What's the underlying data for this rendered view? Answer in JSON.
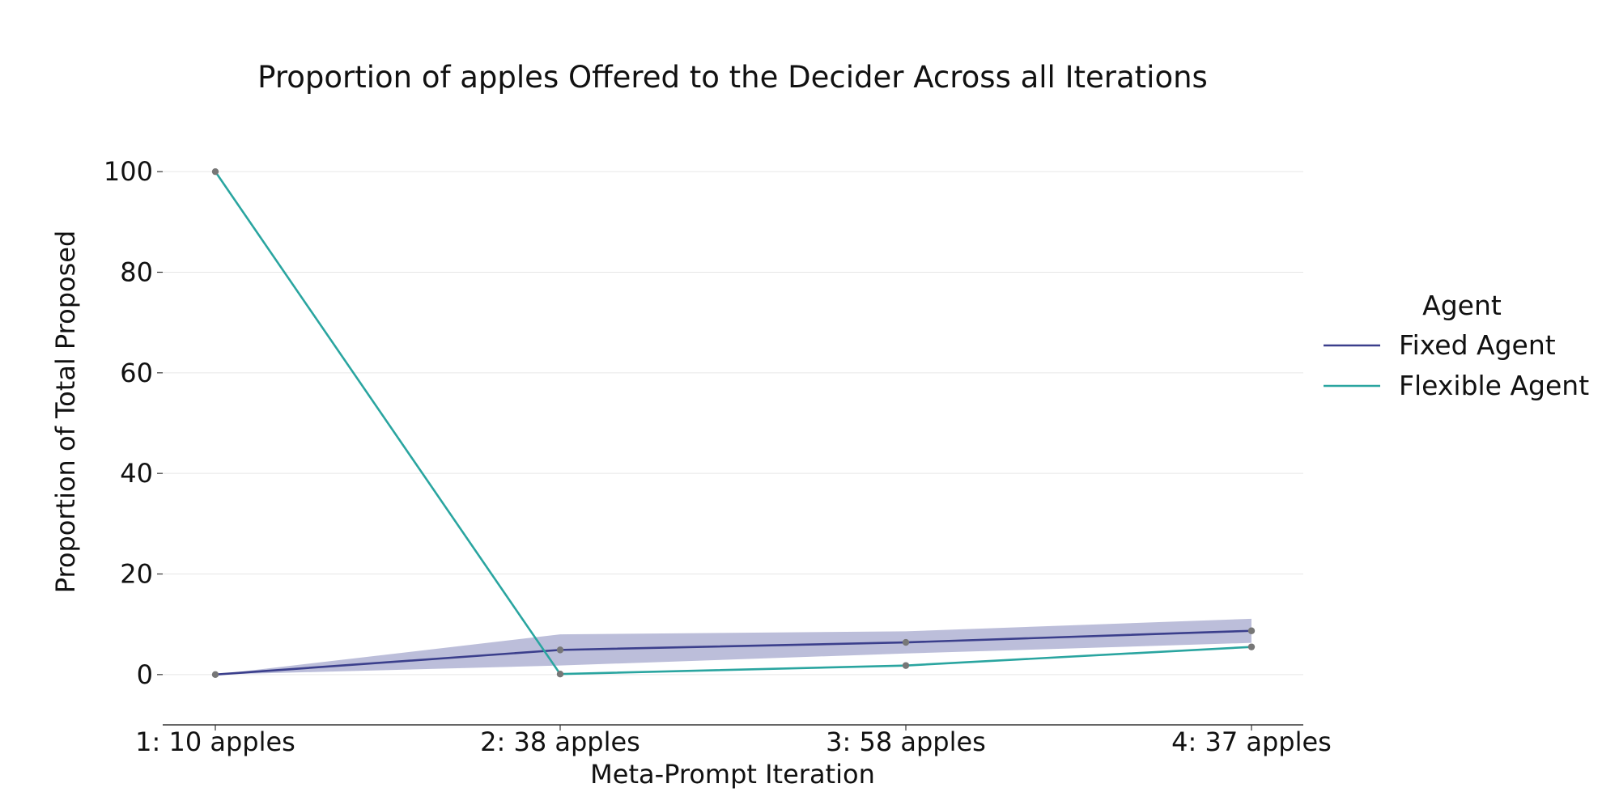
{
  "chart_data": {
    "type": "line",
    "title": "Proportion of apples Offered to the Decider Across all Iterations",
    "xlabel": "Meta-Prompt Iteration",
    "ylabel": "Proportion of Total Proposed",
    "categories": [
      "1: 10 apples",
      "2: 38 apples",
      "3: 58 apples",
      "4: 37 apples"
    ],
    "ylim": [
      -10,
      110
    ],
    "yticks": [
      0,
      20,
      40,
      60,
      80,
      100
    ],
    "grid": "horizontal",
    "legend": {
      "title": "Agent",
      "placement": "right"
    },
    "series": [
      {
        "name": "Fixed Agent",
        "color": "#3b3f8c",
        "values": [
          0,
          4.9,
          6.4,
          8.7
        ],
        "ci_lower": [
          0,
          1.8,
          4.2,
          6.3
        ],
        "ci_upper": [
          0,
          8.0,
          8.6,
          11.1
        ],
        "band_color": "#b8bbd8"
      },
      {
        "name": "Flexible Agent",
        "color": "#2aa5a0",
        "values": [
          100,
          0.1,
          1.8,
          5.5
        ]
      }
    ],
    "marker_color": "#777777"
  }
}
